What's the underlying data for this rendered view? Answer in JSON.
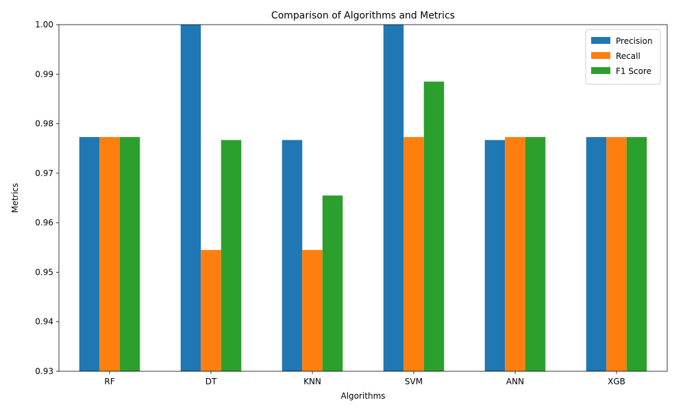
{
  "chart_data": {
    "type": "bar",
    "title": "Comparison of Algorithms and Metrics",
    "xlabel": "Algorithms",
    "ylabel": "Metrics",
    "categories": [
      "RF",
      "DT",
      "KNN",
      "SVM",
      "ANN",
      "XGB"
    ],
    "ylim": [
      0.93,
      1.0
    ],
    "yticks": [
      "0.93",
      "0.94",
      "0.95",
      "0.96",
      "0.97",
      "0.98",
      "0.99",
      "1.00"
    ],
    "legend_position": "top-right",
    "series": [
      {
        "name": "Precision",
        "color": "#1f77b4",
        "values": [
          0.9773,
          1.0,
          0.9767,
          1.0,
          0.9767,
          0.9773
        ]
      },
      {
        "name": "Recall",
        "color": "#ff7f0e",
        "values": [
          0.9773,
          0.9545,
          0.9545,
          0.9773,
          0.9773,
          0.9773
        ]
      },
      {
        "name": "F1 Score",
        "color": "#2ca02c",
        "values": [
          0.9773,
          0.9767,
          0.9655,
          0.9885,
          0.9773,
          0.9773
        ]
      }
    ]
  }
}
